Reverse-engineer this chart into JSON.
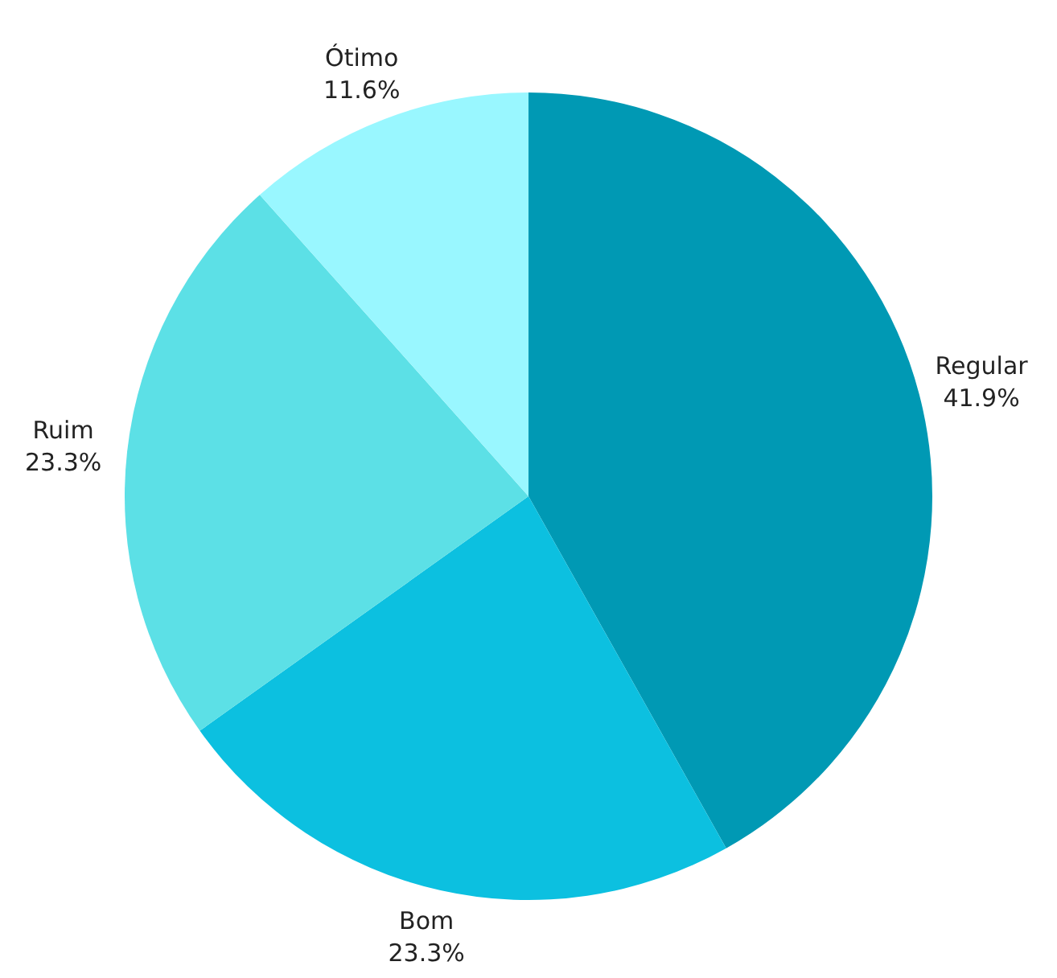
{
  "chart_data": {
    "type": "pie",
    "categories": [
      "Regular",
      "Bom",
      "Ruim",
      "Ótimo"
    ],
    "values": [
      41.9,
      23.3,
      23.3,
      11.6
    ],
    "value_labels": [
      "41.9%",
      "23.3%",
      "23.3%",
      "11.6%"
    ],
    "colors": [
      "#0099b4",
      "#0cc0e0",
      "#5ce0e6",
      "#99f7ff"
    ]
  }
}
